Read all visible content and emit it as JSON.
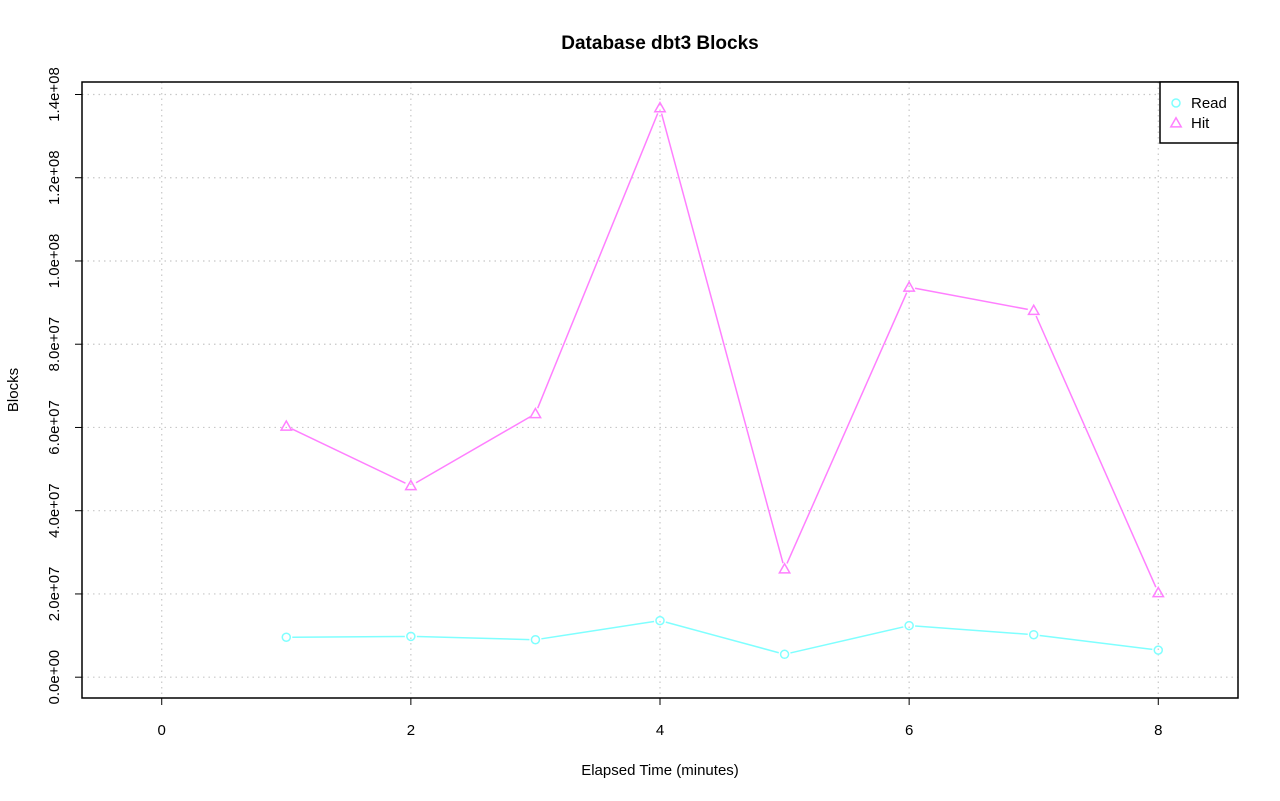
{
  "chart_data": {
    "type": "line",
    "title": "Database dbt3 Blocks",
    "xlabel": "Elapsed Time (minutes)",
    "ylabel": "Blocks",
    "xlim": [
      -0.64,
      8.64
    ],
    "ylim": [
      -5000000,
      143000000
    ],
    "x_ticks": [
      0,
      2,
      4,
      6,
      8
    ],
    "x_tick_labels": [
      "0",
      "2",
      "4",
      "6",
      "8"
    ],
    "y_ticks": [
      0,
      20000000,
      40000000,
      60000000,
      80000000,
      100000000,
      120000000,
      140000000
    ],
    "y_tick_labels": [
      "0.0e+00",
      "2.0e+07",
      "4.0e+07",
      "6.0e+07",
      "8.0e+07",
      "1.0e+08",
      "1.2e+08",
      "1.4e+08"
    ],
    "grid": true,
    "legend_position": "top-right",
    "x": [
      1,
      2,
      3,
      4,
      5,
      6,
      7,
      8
    ],
    "series": [
      {
        "name": "Read",
        "color": "#7fffff",
        "marker": "circle",
        "values": [
          9600000,
          9800000,
          9000000,
          13600000,
          5500000,
          12400000,
          10200000,
          6500000
        ]
      },
      {
        "name": "Hit",
        "color": "#ff7fff",
        "marker": "triangle",
        "values": [
          60300000,
          46000000,
          63300000,
          136800000,
          26000000,
          93700000,
          88100000,
          20300000
        ]
      }
    ]
  }
}
